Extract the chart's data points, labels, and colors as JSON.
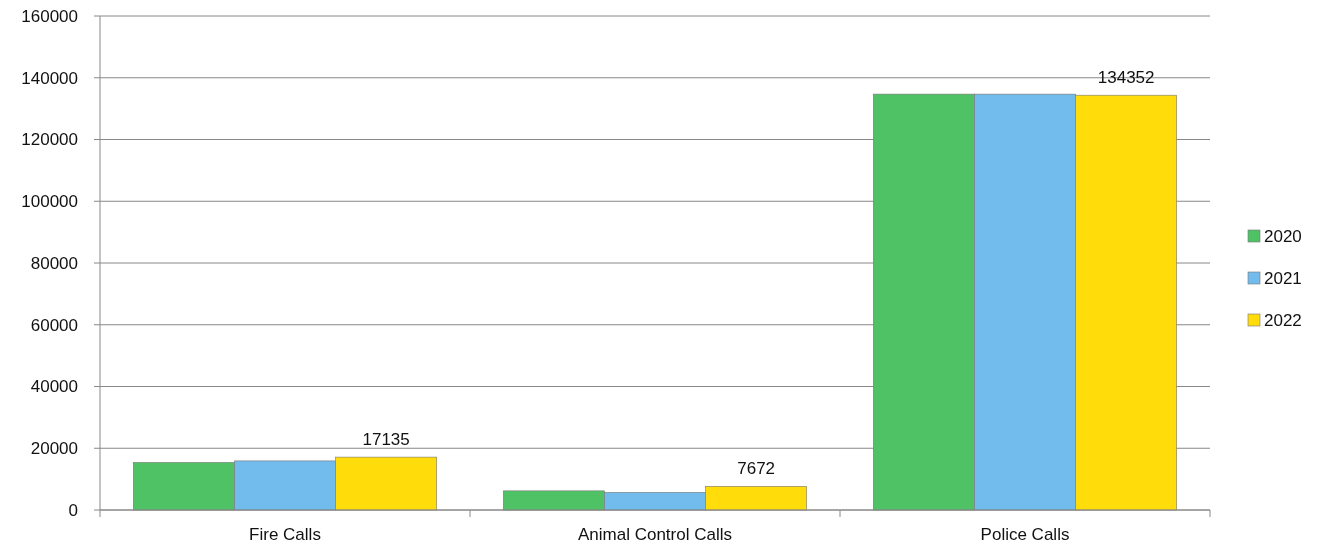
{
  "chart_data": {
    "type": "bar",
    "categories": [
      "Fire Calls",
      "Animal Control Calls",
      "Police Calls"
    ],
    "series": [
      {
        "name": "2020",
        "color": "#4fc266",
        "values": [
          15400,
          6200,
          134700
        ]
      },
      {
        "name": "2021",
        "color": "#72bbed",
        "values": [
          15900,
          5700,
          134700
        ]
      },
      {
        "name": "2022",
        "color": "#ffdc0a",
        "values": [
          17135,
          7672,
          134352
        ],
        "value_labels": [
          "17135",
          "7672",
          "134352"
        ]
      }
    ],
    "ylim": [
      0,
      160000
    ],
    "yticks": [
      0,
      20000,
      40000,
      60000,
      80000,
      100000,
      120000,
      140000,
      160000
    ],
    "grid": "y",
    "legend": "right"
  }
}
